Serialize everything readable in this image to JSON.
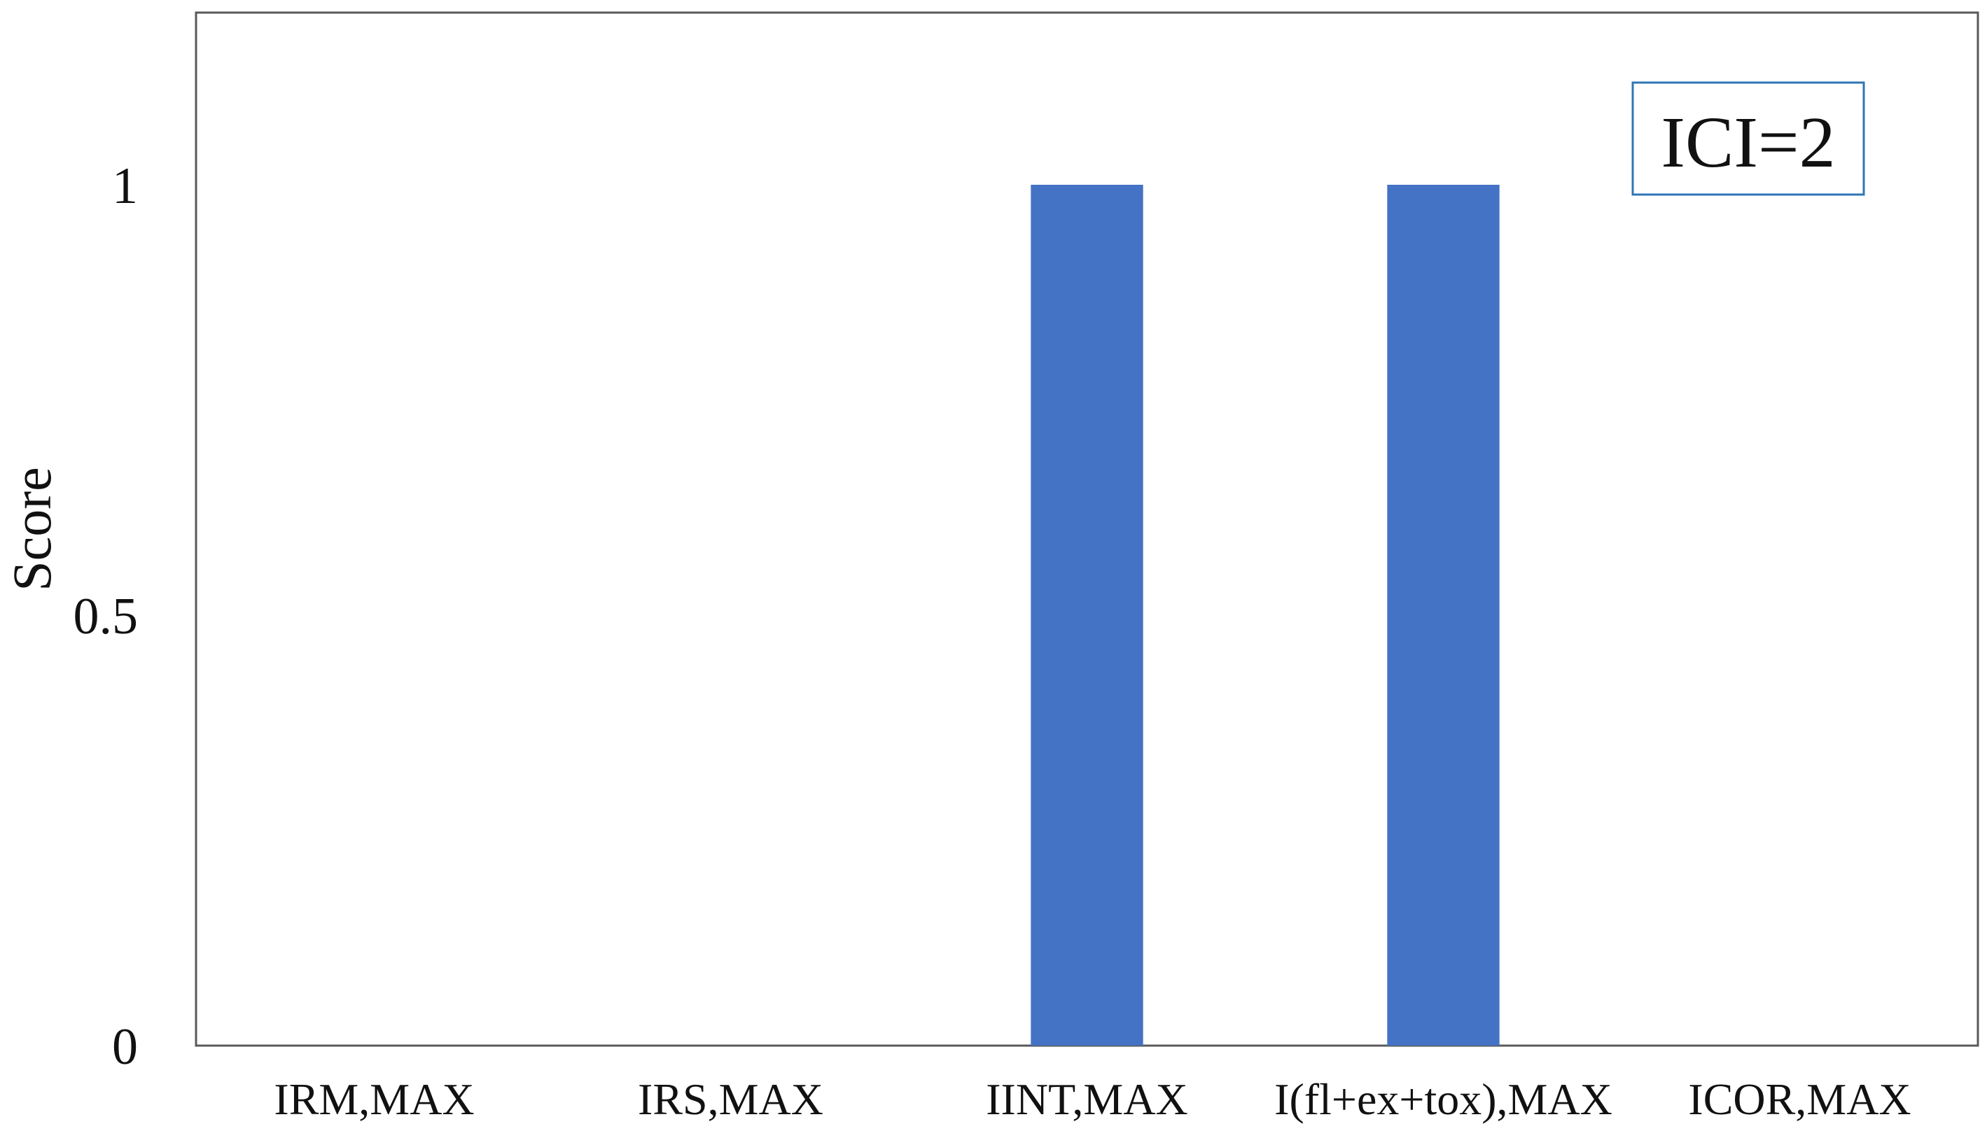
{
  "chart_data": {
    "type": "bar",
    "categories": [
      "IRM,MAX",
      "IRS,MAX",
      "IINT,MAX",
      "I(fl+ex+tox),MAX",
      "ICOR,MAX"
    ],
    "values": [
      0,
      0,
      1,
      1,
      0
    ],
    "xlabel": "",
    "ylabel": "Score",
    "ylim": [
      0,
      1.2
    ],
    "yticks": [
      0,
      0.5,
      1
    ],
    "ytick_labels": [
      "0",
      "0.5",
      "1"
    ],
    "annotation": "ICI=2",
    "annotation_placement": "top-right",
    "grid": false,
    "legend": "none",
    "colors": {
      "bar": "#4472c4",
      "frame": "#595959",
      "annotation_border": "#2e75b6"
    }
  }
}
